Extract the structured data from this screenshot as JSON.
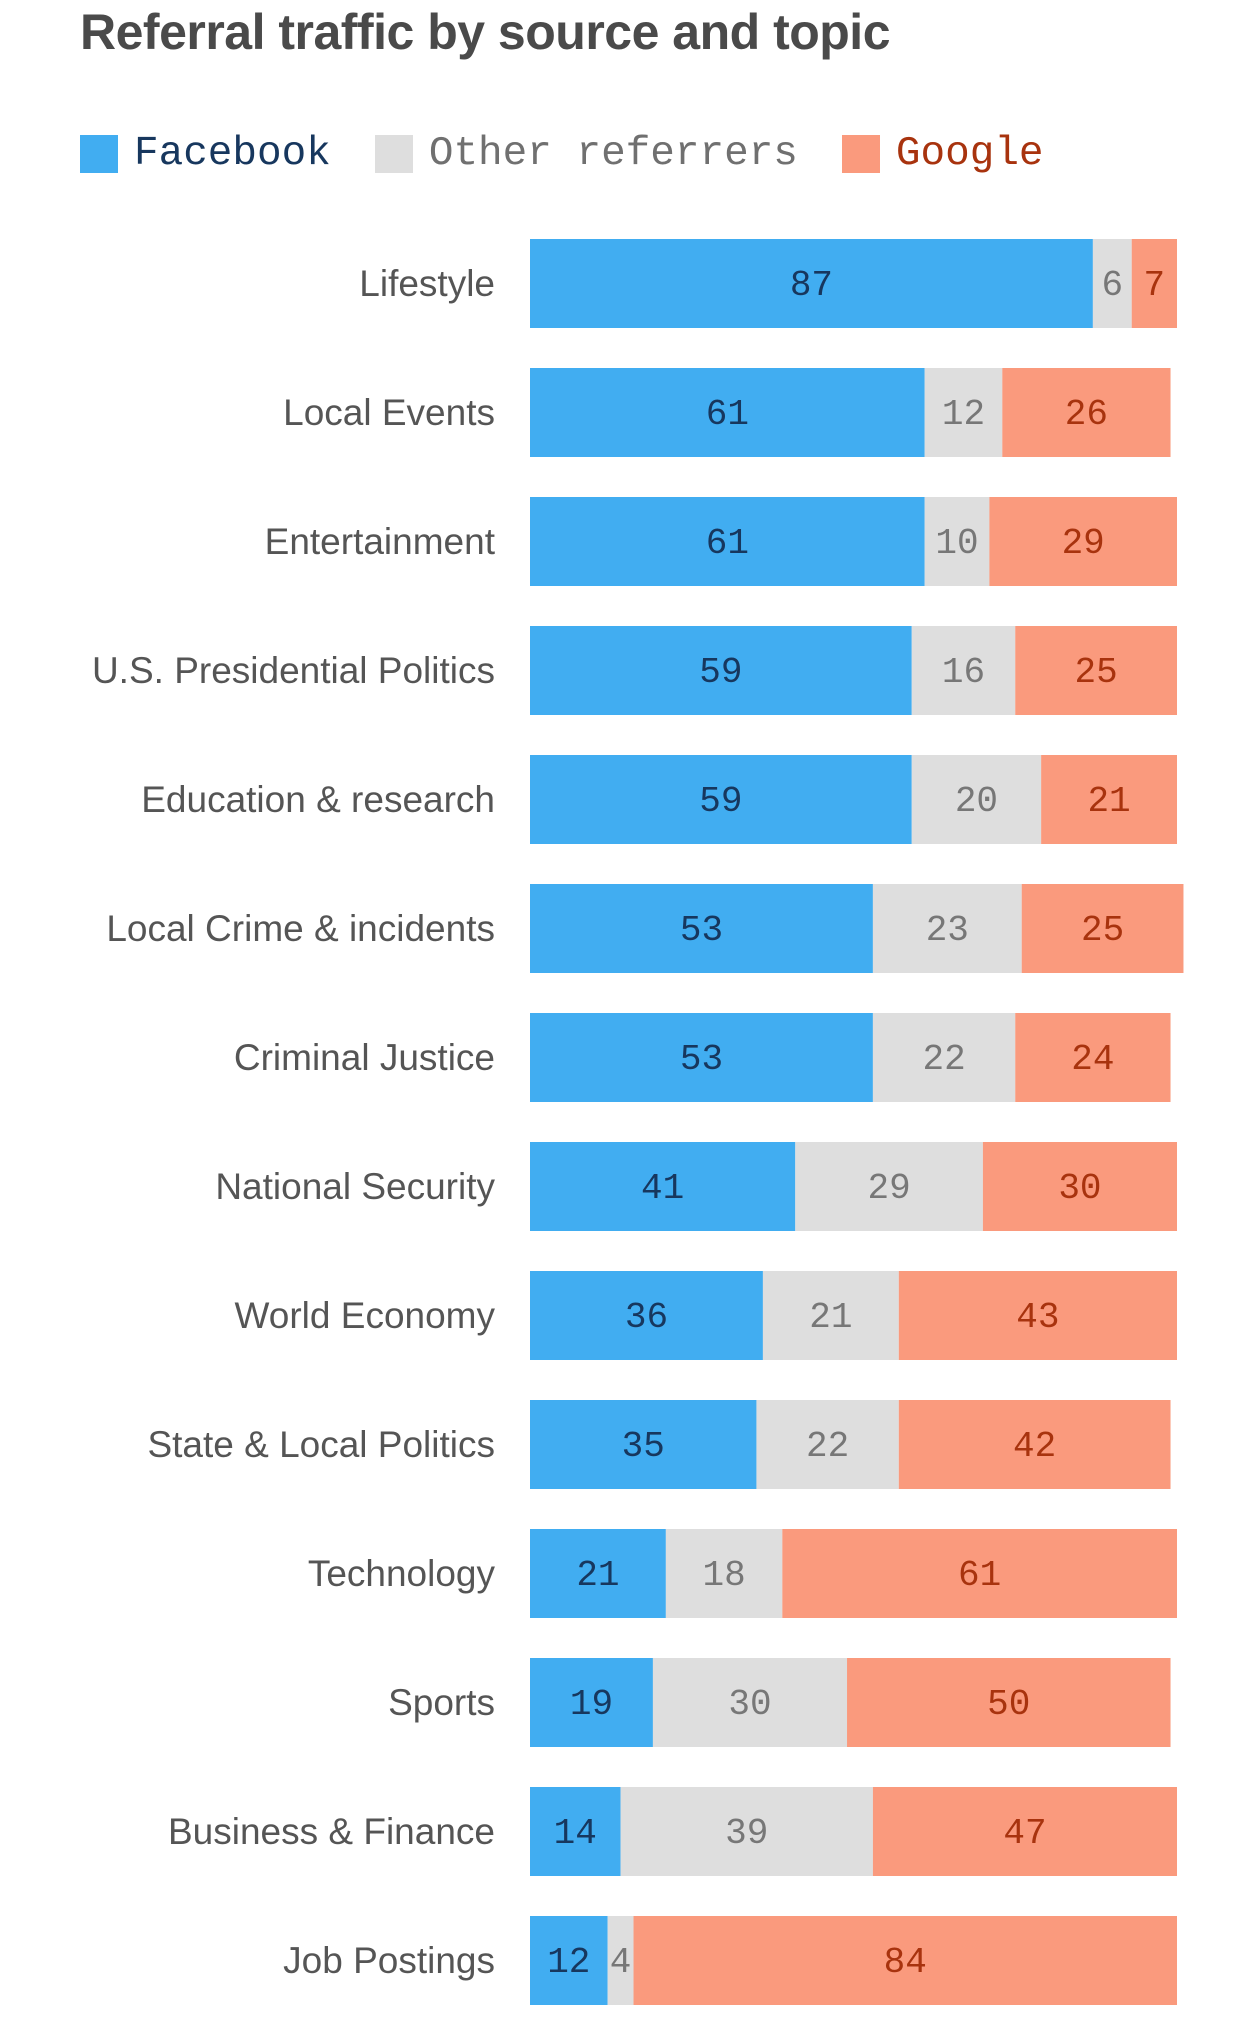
{
  "chart_data": {
    "type": "bar",
    "orientation": "horizontal",
    "stacked": true,
    "title": "Referral traffic by source and topic",
    "xlabel": "",
    "ylabel": "",
    "xlim": [
      0,
      100
    ],
    "grid": false,
    "legend_position": "top-left",
    "categories": [
      "Lifestyle",
      "Local Events",
      "Entertainment",
      "U.S. Presidential Politics",
      "Education & research",
      "Local Crime & incidents",
      "Criminal Justice",
      "National Security",
      "World Economy",
      "State & Local Politics",
      "Technology",
      "Sports",
      "Business & Finance",
      "Job Postings"
    ],
    "series": [
      {
        "name": "Facebook",
        "color": "#41adf1",
        "label_color": "#17375e",
        "values": [
          87,
          61,
          61,
          59,
          59,
          53,
          53,
          41,
          36,
          35,
          21,
          19,
          14,
          12
        ]
      },
      {
        "name": "Other referrers",
        "color": "#dedede",
        "label_color": "#777777",
        "values": [
          6,
          12,
          10,
          16,
          20,
          23,
          22,
          29,
          21,
          22,
          18,
          30,
          39,
          4
        ]
      },
      {
        "name": "Google",
        "color": "#fa9a7d",
        "label_color": "#a8330e",
        "values": [
          7,
          26,
          29,
          25,
          21,
          25,
          24,
          30,
          43,
          42,
          61,
          50,
          47,
          84
        ]
      }
    ]
  }
}
